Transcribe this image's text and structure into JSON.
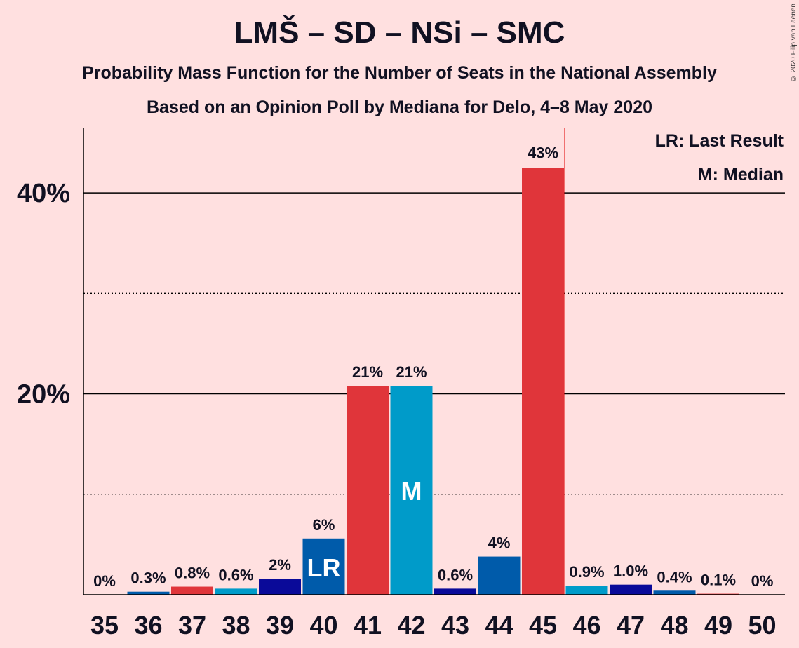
{
  "title": "LMŠ – SD – NSi – SMC",
  "subtitle": "Probability Mass Function for the Number of Seats in the National Assembly",
  "subtitle2": "Based on an Opinion Poll by Mediana for Delo, 4–8 May 2020",
  "copyright": "© 2020 Filip van Laenen",
  "legend": {
    "last_result": "LR: Last Result",
    "median": "M: Median"
  },
  "colors": {
    "background": "#FFE0E0",
    "red": "#E0353A",
    "cyan": "#009BC9",
    "blue": "#005BAA",
    "navy": "#0A0A99",
    "majority_line": "#E00000"
  },
  "chart_data": {
    "type": "bar",
    "categories": [
      "35",
      "36",
      "37",
      "38",
      "39",
      "40",
      "41",
      "42",
      "43",
      "44",
      "45",
      "46",
      "47",
      "48",
      "49",
      "50"
    ],
    "values": [
      0,
      0.3,
      0.8,
      0.6,
      1.6,
      5.6,
      20.8,
      20.8,
      0.6,
      3.8,
      42.5,
      0.9,
      1.0,
      0.4,
      0.1,
      0
    ],
    "value_labels": [
      "0%",
      "0.3%",
      "0.8%",
      "0.6%",
      "2%",
      "6%",
      "21%",
      "21%",
      "0.6%",
      "4%",
      "43%",
      "0.9%",
      "1.0%",
      "0.4%",
      "0.1%",
      "0%"
    ],
    "bar_colors": [
      "#E0353A",
      "#005BAA",
      "#E0353A",
      "#009BC9",
      "#0A0A99",
      "#005BAA",
      "#E0353A",
      "#009BC9",
      "#0A0A99",
      "#005BAA",
      "#E0353A",
      "#009BC9",
      "#0A0A99",
      "#005BAA",
      "#E0353A",
      "#009BC9"
    ],
    "ylim": [
      0,
      46.5
    ],
    "y_major_ticks": [
      20,
      40
    ],
    "y_tick_labels": [
      "20%",
      "40%"
    ],
    "y_minor_ticks": [
      10,
      30
    ],
    "last_result_seat": "40",
    "last_result_label": "LR",
    "median_seat": "42",
    "median_label": "M",
    "majority_threshold": 45.5,
    "legend_position": "top-right",
    "xlabel": "",
    "ylabel": ""
  }
}
